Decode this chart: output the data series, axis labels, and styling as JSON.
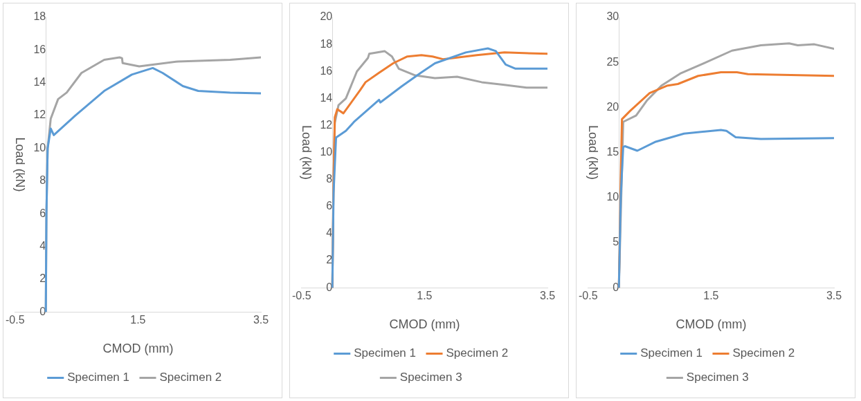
{
  "chart_data": [
    {
      "type": "line",
      "xlabel": "CMOD (mm)",
      "ylabel": "Load (kN)",
      "xlim": [
        -0.5,
        3.5
      ],
      "xticks": [
        -0.5,
        1.5,
        3.5
      ],
      "ylim": [
        0,
        18
      ],
      "yticks": [
        0,
        2,
        4,
        6,
        8,
        10,
        12,
        14,
        16,
        18
      ],
      "grid": false,
      "legend": "bottom",
      "marker": "none",
      "line_style": "solid",
      "series": [
        {
          "name": "Specimen 1",
          "color": "#5b9bd5",
          "x": [
            0,
            0.01,
            0.03,
            0.08,
            0.13,
            0.48,
            0.95,
            1.4,
            1.74,
            1.9,
            2.23,
            2.48,
            3.0,
            3.5
          ],
          "values": [
            0,
            6,
            10,
            11.2,
            10.8,
            12.0,
            13.5,
            14.5,
            14.9,
            14.6,
            13.8,
            13.5,
            13.4,
            13.35
          ]
        },
        {
          "name": "Specimen 2",
          "color": "#a5a5a5",
          "x": [
            0,
            0.01,
            0.03,
            0.08,
            0.2,
            0.34,
            0.58,
            0.95,
            1.2,
            1.24,
            1.25,
            1.52,
            2.15,
            3.0,
            3.5
          ],
          "values": [
            0,
            6,
            10,
            11.8,
            13.0,
            13.4,
            14.6,
            15.4,
            15.55,
            15.5,
            15.2,
            15.0,
            15.3,
            15.4,
            15.55
          ]
        }
      ]
    },
    {
      "type": "line",
      "xlabel": "CMOD (mm)",
      "ylabel": "Load (kN)",
      "xlim": [
        -0.5,
        3.5
      ],
      "xticks": [
        -0.5,
        1.5,
        3.5
      ],
      "ylim": [
        0,
        20
      ],
      "yticks": [
        0,
        2,
        4,
        6,
        8,
        10,
        12,
        14,
        16,
        18,
        20
      ],
      "grid": false,
      "legend": "bottom",
      "marker": "none",
      "line_style": "solid",
      "series": [
        {
          "name": "Specimen 1",
          "color": "#5b9bd5",
          "x": [
            0,
            0.02,
            0.06,
            0.22,
            0.36,
            0.76,
            0.78,
            1.13,
            1.44,
            1.67,
            2.17,
            2.53,
            2.66,
            2.82,
            2.98,
            3.5
          ],
          "values": [
            0,
            7,
            11.1,
            11.6,
            12.3,
            13.9,
            13.7,
            14.9,
            15.9,
            16.6,
            17.4,
            17.7,
            17.5,
            16.5,
            16.2,
            16.2
          ]
        },
        {
          "name": "Specimen 2",
          "color": "#ed7d31",
          "x": [
            0,
            0.02,
            0.04,
            0.08,
            0.18,
            0.45,
            0.54,
            0.76,
            0.99,
            1.22,
            1.45,
            1.63,
            1.8,
            2.35,
            2.8,
            3.5
          ],
          "values": [
            0,
            8,
            12.6,
            13.2,
            12.9,
            14.6,
            15.2,
            15.9,
            16.6,
            17.1,
            17.2,
            17.1,
            16.9,
            17.2,
            17.4,
            17.3
          ]
        },
        {
          "name": "Specimen 3",
          "color": "#a5a5a5",
          "x": [
            0,
            0.02,
            0.04,
            0.1,
            0.22,
            0.4,
            0.58,
            0.6,
            0.85,
            0.97,
            1.08,
            1.35,
            1.67,
            2.03,
            2.43,
            2.8,
            3.16,
            3.5
          ],
          "values": [
            0,
            8,
            12.2,
            13.5,
            14.0,
            16.0,
            17.0,
            17.3,
            17.5,
            17.1,
            16.2,
            15.7,
            15.5,
            15.6,
            15.2,
            15.0,
            14.8,
            14.8
          ]
        }
      ]
    },
    {
      "type": "line",
      "xlabel": "CMOD (mm)",
      "ylabel": "Load (kN)",
      "xlim": [
        -0.5,
        3.5
      ],
      "xticks": [
        -0.5,
        1.5,
        3.5
      ],
      "ylim": [
        0,
        30
      ],
      "yticks": [
        0,
        5,
        10,
        15,
        20,
        25,
        30
      ],
      "grid": false,
      "legend": "bottom",
      "marker": "none",
      "line_style": "solid",
      "series": [
        {
          "name": "Specimen 1",
          "color": "#5b9bd5",
          "x": [
            0,
            0.03,
            0.07,
            0.1,
            0.3,
            0.6,
            1.06,
            1.66,
            1.75,
            1.9,
            2.31,
            3.5
          ],
          "values": [
            0,
            10,
            15.6,
            15.7,
            15.2,
            16.2,
            17.1,
            17.5,
            17.4,
            16.7,
            16.5,
            16.6
          ]
        },
        {
          "name": "Specimen 2",
          "color": "#ed7d31",
          "x": [
            0,
            0.03,
            0.05,
            0.18,
            0.5,
            0.78,
            0.96,
            1.29,
            1.66,
            1.92,
            2.1,
            3.5
          ],
          "values": [
            0,
            12,
            18.7,
            19.6,
            21.6,
            22.4,
            22.6,
            23.5,
            23.9,
            23.9,
            23.7,
            23.5
          ]
        },
        {
          "name": "Specimen 3",
          "color": "#a5a5a5",
          "x": [
            0,
            0.07,
            0.28,
            0.46,
            0.69,
            1.01,
            1.38,
            1.84,
            2.31,
            2.77,
            2.91,
            3.18,
            3.5
          ],
          "values": [
            0,
            18.4,
            19.1,
            20.8,
            22.4,
            23.8,
            24.9,
            26.3,
            26.9,
            27.1,
            26.9,
            27.0,
            26.5
          ]
        }
      ]
    }
  ]
}
